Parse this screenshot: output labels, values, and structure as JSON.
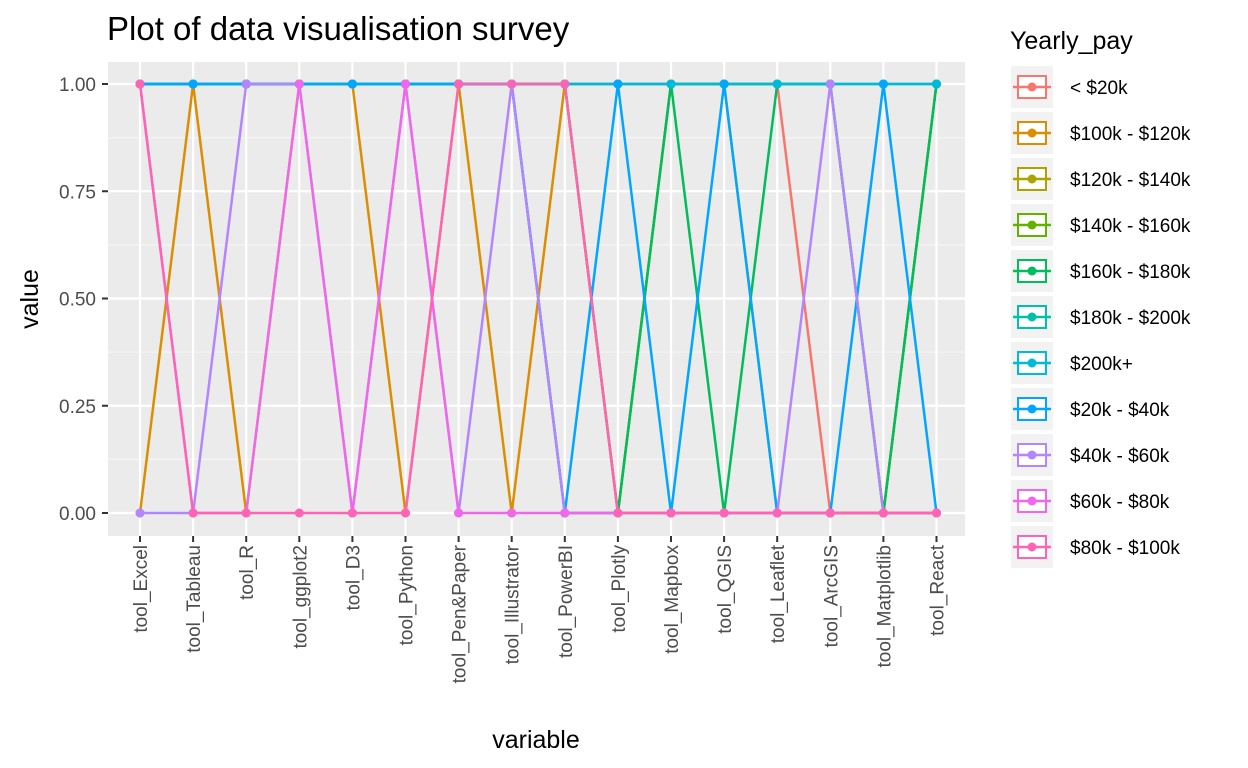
{
  "chart_data": {
    "type": "line",
    "title": "Plot of data visualisation survey",
    "xlabel": "variable",
    "ylabel": "value",
    "ylim": [
      0,
      1
    ],
    "y_ticks": [
      "0.00",
      "0.25",
      "0.50",
      "0.75",
      "1.00"
    ],
    "grid": true,
    "legend_title": "Yearly_pay",
    "legend_position": "right",
    "categories": [
      "tool_Excel",
      "tool_Tableau",
      "tool_R",
      "tool_ggplot2",
      "tool_D3",
      "tool_Python",
      "tool_Pen&Paper",
      "tool_Illustrator",
      "tool_PowerBI",
      "tool_Plotly",
      "tool_Mapbox",
      "tool_QGIS",
      "tool_Leaflet",
      "tool_ArcGIS",
      "tool_Matplotlib",
      "tool_React"
    ],
    "series": [
      {
        "name": "< $20k",
        "color": "#F8766D",
        "values": [
          1,
          1,
          1,
          1,
          1,
          1,
          1,
          1,
          1,
          1,
          1,
          1,
          1,
          0,
          0,
          0
        ]
      },
      {
        "name": "$100k - $120k",
        "color": "#DB8E00",
        "values": [
          0,
          1,
          0,
          1,
          1,
          0,
          1,
          0,
          1,
          0,
          0,
          0,
          0,
          0,
          0,
          0
        ]
      },
      {
        "name": "$120k - $140k",
        "color": "#AEA200",
        "values": [
          1,
          1,
          1,
          1,
          1,
          1,
          1,
          1,
          1,
          0,
          1,
          1,
          0,
          0,
          0,
          1
        ]
      },
      {
        "name": "$140k - $160k",
        "color": "#64B200",
        "values": [
          1,
          1,
          1,
          1,
          1,
          1,
          1,
          1,
          1,
          0,
          1,
          1,
          1,
          1,
          0,
          1
        ]
      },
      {
        "name": "$160k - $180k",
        "color": "#00BD5C",
        "values": [
          1,
          1,
          1,
          1,
          1,
          1,
          1,
          1,
          0,
          0,
          1,
          0,
          1,
          1,
          0,
          1
        ]
      },
      {
        "name": "$180k - $200k",
        "color": "#00C1A7",
        "values": [
          1,
          1,
          1,
          1,
          1,
          1,
          1,
          1,
          1,
          1,
          1,
          1,
          1,
          1,
          1,
          1
        ]
      },
      {
        "name": "$200k+",
        "color": "#00BADE",
        "values": [
          1,
          1,
          1,
          1,
          1,
          1,
          1,
          1,
          1,
          1,
          1,
          1,
          1,
          1,
          1,
          1
        ]
      },
      {
        "name": "$20k - $40k",
        "color": "#00A6FF",
        "values": [
          1,
          1,
          1,
          1,
          1,
          1,
          1,
          1,
          0,
          1,
          0,
          1,
          0,
          0,
          1,
          0
        ]
      },
      {
        "name": "$40k - $60k",
        "color": "#B385FF",
        "values": [
          0,
          0,
          1,
          1,
          0,
          1,
          0,
          1,
          0,
          0,
          0,
          0,
          0,
          1,
          0,
          0
        ]
      },
      {
        "name": "$60k - $80k",
        "color": "#EF67EB",
        "values": [
          1,
          0,
          0,
          1,
          0,
          1,
          0,
          0,
          0,
          0,
          0,
          0,
          0,
          0,
          0,
          0
        ]
      },
      {
        "name": "$80k - $100k",
        "color": "#FF63B6",
        "values": [
          1,
          0,
          0,
          0,
          0,
          0,
          1,
          1,
          1,
          0,
          0,
          0,
          0,
          0,
          0,
          0
        ]
      }
    ]
  }
}
